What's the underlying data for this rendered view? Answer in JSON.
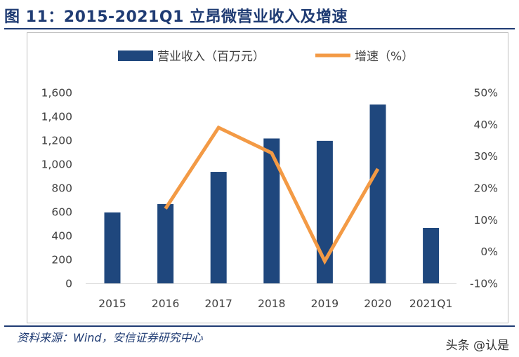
{
  "header": {
    "title": "图 11：2015-2021Q1 立昂微营业收入及增速"
  },
  "footer": {
    "source": "资料来源：Wind，安信证券研究中心",
    "watermark": "头条 @认是"
  },
  "colors": {
    "bar": "#1f477d",
    "line": "#f39a45",
    "title": "#1f3b73",
    "axis_text": "#404040"
  },
  "chart_data": {
    "type": "bar",
    "categories": [
      "2015",
      "2016",
      "2017",
      "2018",
      "2019",
      "2020",
      "2021Q1"
    ],
    "series": [
      {
        "name": "营业收入（百万元）",
        "type": "bar",
        "axis": "left",
        "values": [
          595,
          665,
          935,
          1215,
          1195,
          1500,
          465
        ]
      },
      {
        "name": "增速（%）",
        "type": "line",
        "axis": "right",
        "values": [
          null,
          13.5,
          39,
          31,
          -3,
          26,
          null
        ]
      }
    ],
    "y_left": {
      "ylim": [
        0,
        1600
      ],
      "ticks": [
        0,
        200,
        400,
        600,
        800,
        1000,
        1200,
        1400,
        1600
      ],
      "tick_labels": [
        "0",
        "200",
        "400",
        "600",
        "800",
        "1,000",
        "1,200",
        "1,400",
        "1,600"
      ]
    },
    "y_right": {
      "ylim": [
        -10,
        50
      ],
      "ticks": [
        -10,
        0,
        10,
        20,
        30,
        40,
        50
      ],
      "tick_labels": [
        "-10%",
        "0%",
        "10%",
        "20%",
        "30%",
        "40%",
        "50%"
      ]
    },
    "legend_position": "top-center",
    "grid": false
  }
}
